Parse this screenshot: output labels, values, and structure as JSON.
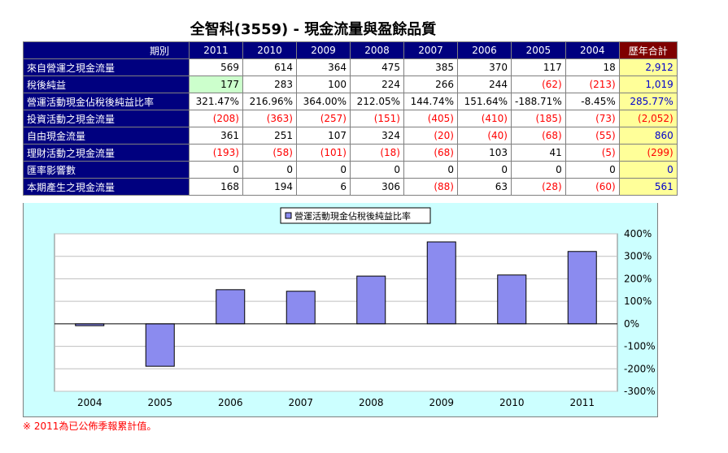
{
  "title": "全智科(3559) -  現金流量與盈餘品質",
  "table": {
    "header_label": "期別",
    "years": [
      "2011",
      "2010",
      "2009",
      "2008",
      "2007",
      "2006",
      "2005",
      "2004"
    ],
    "total_label": "歷年合計",
    "rows": [
      {
        "label": "來自營運之現金流量",
        "values": [
          "569",
          "614",
          "364",
          "475",
          "385",
          "370",
          "117",
          "18"
        ],
        "total": "2,912"
      },
      {
        "label": "稅後純益",
        "values": [
          "177",
          "283",
          "100",
          "224",
          "266",
          "244",
          "(62)",
          "(213)"
        ],
        "total": "1,019"
      },
      {
        "label": "營運活動現金佔稅後純益比率",
        "values": [
          "321.47%",
          "216.96%",
          "364.00%",
          "212.05%",
          "144.74%",
          "151.64%",
          "-188.71%",
          "-8.45%"
        ],
        "total": "285.77%"
      },
      {
        "label": "投資活動之現金流量",
        "values": [
          "(208)",
          "(363)",
          "(257)",
          "(151)",
          "(405)",
          "(410)",
          "(185)",
          "(73)"
        ],
        "total": "(2,052)"
      },
      {
        "label": "自由現金流量",
        "values": [
          "361",
          "251",
          "107",
          "324",
          "(20)",
          "(40)",
          "(68)",
          "(55)"
        ],
        "total": "860"
      },
      {
        "label": "理財活動之現金流量",
        "values": [
          "(193)",
          "(58)",
          "(101)",
          "(18)",
          "(68)",
          "103",
          "41",
          "(5)"
        ],
        "total": "(299)"
      },
      {
        "label": "匯率影響數",
        "values": [
          "0",
          "0",
          "0",
          "0",
          "0",
          "0",
          "0",
          "0"
        ],
        "total": "0"
      },
      {
        "label": "本期產生之現金流量",
        "values": [
          "168",
          "194",
          "6",
          "306",
          "(88)",
          "63",
          "(28)",
          "(60)"
        ],
        "total": "561"
      }
    ]
  },
  "chart_data": {
    "type": "bar",
    "categories": [
      "2004",
      "2005",
      "2006",
      "2007",
      "2008",
      "2009",
      "2010",
      "2011"
    ],
    "series": [
      {
        "name": "營運活動現金佔稅後純益比率",
        "values": [
          -8.45,
          -188.71,
          151.64,
          144.74,
          212.05,
          364.0,
          216.96,
          321.47
        ]
      }
    ],
    "ylim": [
      -300,
      400
    ],
    "yticks": [
      400,
      300,
      200,
      100,
      0,
      -100,
      -200,
      -300
    ],
    "ytick_labels": [
      "400%",
      "300%",
      "200%",
      "100%",
      "0%",
      "-100%",
      "-200%",
      "-300%"
    ],
    "grid": true,
    "legend_position": "top-center",
    "bar_color": "#8b8bef",
    "plot_bg": "#ffffff",
    "chart_bg": "#ccffff"
  },
  "note": "※ 2011為已公佈季報累計值。"
}
